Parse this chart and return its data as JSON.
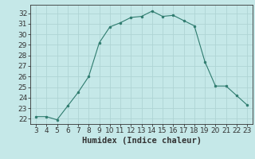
{
  "x": [
    3,
    4,
    5,
    6,
    7,
    8,
    9,
    10,
    11,
    12,
    13,
    14,
    15,
    16,
    17,
    18,
    19,
    20,
    21,
    22,
    23
  ],
  "y": [
    22.2,
    22.2,
    21.9,
    23.2,
    24.5,
    26.0,
    29.2,
    30.7,
    31.1,
    31.6,
    31.7,
    32.2,
    31.7,
    31.8,
    31.3,
    30.8,
    27.4,
    25.1,
    25.1,
    24.2,
    23.3
  ],
  "line_color": "#2e7b6e",
  "marker_color": "#2e7b6e",
  "bg_color": "#c5e8e8",
  "grid_color": "#afd4d4",
  "xlabel": "Humidex (Indice chaleur)",
  "xlim_min": 2.5,
  "xlim_max": 23.5,
  "ylim_min": 21.5,
  "ylim_max": 32.8,
  "yticks": [
    22,
    23,
    24,
    25,
    26,
    27,
    28,
    29,
    30,
    31,
    32
  ],
  "xticks": [
    3,
    4,
    5,
    6,
    7,
    8,
    9,
    10,
    11,
    12,
    13,
    14,
    15,
    16,
    17,
    18,
    19,
    20,
    21,
    22,
    23
  ],
  "axis_color": "#333333",
  "tick_fontsize": 6.5,
  "xlabel_fontsize": 7.5
}
